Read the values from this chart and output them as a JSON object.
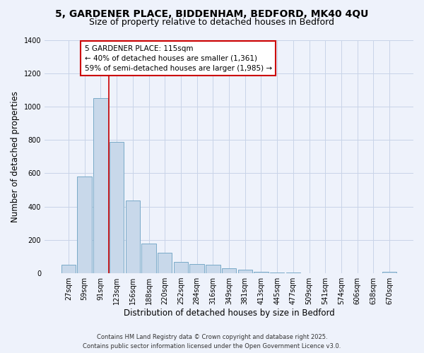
{
  "title_line1": "5, GARDENER PLACE, BIDDENHAM, BEDFORD, MK40 4QU",
  "title_line2": "Size of property relative to detached houses in Bedford",
  "xlabel": "Distribution of detached houses by size in Bedford",
  "ylabel": "Number of detached properties",
  "categories": [
    "27sqm",
    "59sqm",
    "91sqm",
    "123sqm",
    "156sqm",
    "188sqm",
    "220sqm",
    "252sqm",
    "284sqm",
    "316sqm",
    "349sqm",
    "381sqm",
    "413sqm",
    "445sqm",
    "477sqm",
    "509sqm",
    "541sqm",
    "574sqm",
    "606sqm",
    "638sqm",
    "670sqm"
  ],
  "values": [
    50,
    580,
    1050,
    790,
    435,
    180,
    125,
    70,
    55,
    50,
    30,
    20,
    10,
    5,
    3,
    1,
    0,
    0,
    0,
    0,
    8
  ],
  "bar_color": "#c8d8ea",
  "bar_edge_color": "#7aaac8",
  "background_color": "#eef2fb",
  "grid_color": "#c8d4e8",
  "vline_color": "#cc0000",
  "annotation_title": "5 GARDENER PLACE: 115sqm",
  "annotation_line2": "← 40% of detached houses are smaller (1,361)",
  "annotation_line3": "59% of semi-detached houses are larger (1,985) →",
  "annotation_box_color": "#ffffff",
  "annotation_box_edge": "#cc0000",
  "ylim": [
    0,
    1400
  ],
  "yticks": [
    0,
    200,
    400,
    600,
    800,
    1000,
    1200,
    1400
  ],
  "footer_line1": "Contains HM Land Registry data © Crown copyright and database right 2025.",
  "footer_line2": "Contains public sector information licensed under the Open Government Licence v3.0.",
  "title_fontsize": 10,
  "subtitle_fontsize": 9,
  "axis_label_fontsize": 8.5,
  "tick_fontsize": 7,
  "annotation_fontsize": 7.5,
  "footer_fontsize": 6
}
